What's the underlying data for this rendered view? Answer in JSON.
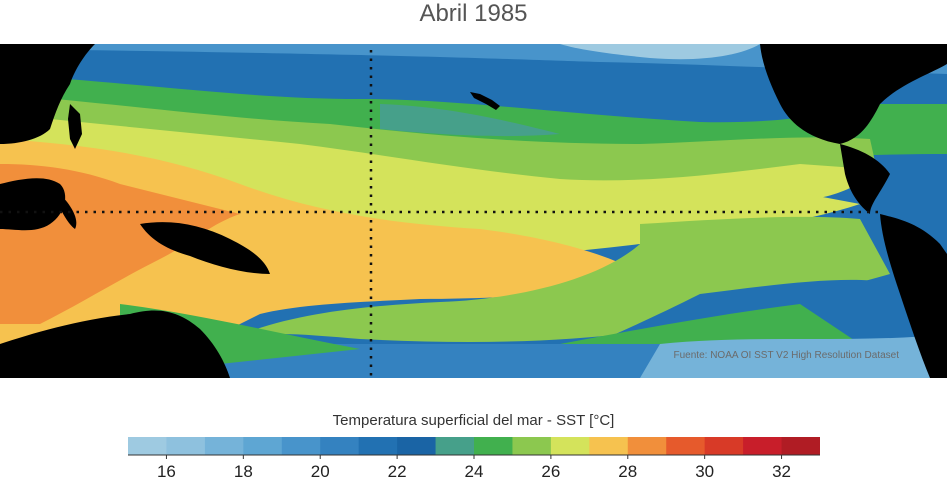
{
  "title": "Abril 1985",
  "source": "Fuente: NOAA OI SST V2 High Resolution Dataset",
  "colorbar": {
    "title": "Temperatura superficial del mar - SST  [°C]",
    "bins": [
      {
        "from": 15,
        "to": 16,
        "color": "#9ecae1"
      },
      {
        "from": 16,
        "to": 17,
        "color": "#8ec1de"
      },
      {
        "from": 17,
        "to": 18,
        "color": "#75b3d9"
      },
      {
        "from": 18,
        "to": 19,
        "color": "#5ea6d3"
      },
      {
        "from": 19,
        "to": 20,
        "color": "#4894cb"
      },
      {
        "from": 20,
        "to": 21,
        "color": "#3482c0"
      },
      {
        "from": 21,
        "to": 22,
        "color": "#2271b2"
      },
      {
        "from": 22,
        "to": 23,
        "color": "#1a64a5"
      },
      {
        "from": 23,
        "to": 24,
        "color": "#46a08a"
      },
      {
        "from": 24,
        "to": 25,
        "color": "#41b04e"
      },
      {
        "from": 25,
        "to": 26,
        "color": "#8cc84f"
      },
      {
        "from": 26,
        "to": 27,
        "color": "#d4e35b"
      },
      {
        "from": 27,
        "to": 28,
        "color": "#f6c24f"
      },
      {
        "from": 28,
        "to": 29,
        "color": "#f18f3b"
      },
      {
        "from": 29,
        "to": 30,
        "color": "#e65a2c"
      },
      {
        "from": 30,
        "to": 31,
        "color": "#d83a27"
      },
      {
        "from": 31,
        "to": 32,
        "color": "#c81e2a"
      },
      {
        "from": 32,
        "to": 33,
        "color": "#b01c24"
      }
    ],
    "ticks": [
      {
        "value": 16,
        "label": "16"
      },
      {
        "value": 18,
        "label": "18"
      },
      {
        "value": 20,
        "label": "20"
      },
      {
        "value": 22,
        "label": "22"
      },
      {
        "value": 24,
        "label": "24"
      },
      {
        "value": 26,
        "label": "26"
      },
      {
        "value": 28,
        "label": "28"
      },
      {
        "value": 30,
        "label": "30"
      },
      {
        "value": 32,
        "label": "32"
      }
    ]
  },
  "colors": {
    "land": "#000000",
    "reference_lines": "#111111"
  }
}
